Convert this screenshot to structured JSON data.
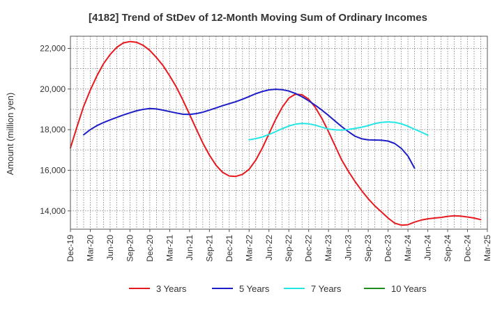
{
  "chart_data": {
    "type": "line",
    "title": "[4182]  Trend of StDev of 12-Month Moving Sum of Ordinary Incomes",
    "xlabel": "",
    "ylabel": "Amount (million yen)",
    "x_ticks": [
      "Dec-19",
      "Mar-20",
      "Jun-20",
      "Sep-20",
      "Dec-20",
      "Mar-21",
      "Jun-21",
      "Sep-21",
      "Dec-21",
      "Mar-22",
      "Jun-22",
      "Sep-22",
      "Dec-22",
      "Mar-23",
      "Jun-23",
      "Sep-23",
      "Dec-23",
      "Mar-24",
      "Jun-24",
      "Sep-24",
      "Dec-24",
      "Mar-25"
    ],
    "y_ticks": [
      "14,000",
      "16,000",
      "18,000",
      "20,000",
      "22,000"
    ],
    "ylim": [
      13100,
      22600
    ],
    "grid": true,
    "legend_position": "bottom",
    "series": [
      {
        "name": "3 Years",
        "color": "#e8191e",
        "points": [
          [
            0,
            17100
          ],
          [
            1,
            18150
          ],
          [
            2,
            19150
          ],
          [
            3,
            19950
          ],
          [
            4,
            20650
          ],
          [
            5,
            21250
          ],
          [
            6,
            21700
          ],
          [
            7,
            22050
          ],
          [
            8,
            22270
          ],
          [
            9,
            22340
          ],
          [
            10,
            22300
          ],
          [
            11,
            22150
          ],
          [
            12,
            21900
          ],
          [
            13,
            21550
          ],
          [
            14,
            21150
          ],
          [
            15,
            20650
          ],
          [
            16,
            20100
          ],
          [
            17,
            19450
          ],
          [
            18,
            18750
          ],
          [
            19,
            18050
          ],
          [
            20,
            17350
          ],
          [
            21,
            16750
          ],
          [
            22,
            16250
          ],
          [
            23,
            15900
          ],
          [
            24,
            15720
          ],
          [
            25,
            15700
          ],
          [
            26,
            15800
          ],
          [
            27,
            16050
          ],
          [
            28,
            16500
          ],
          [
            29,
            17100
          ],
          [
            30,
            17800
          ],
          [
            31,
            18500
          ],
          [
            32,
            19100
          ],
          [
            33,
            19550
          ],
          [
            34,
            19750
          ],
          [
            35,
            19720
          ],
          [
            36,
            19500
          ],
          [
            37,
            19100
          ],
          [
            38,
            18550
          ],
          [
            39,
            17900
          ],
          [
            40,
            17200
          ],
          [
            41,
            16500
          ],
          [
            42,
            15950
          ],
          [
            43,
            15450
          ],
          [
            44,
            15000
          ],
          [
            45,
            14600
          ],
          [
            46,
            14250
          ],
          [
            47,
            13950
          ],
          [
            48,
            13650
          ],
          [
            49,
            13400
          ],
          [
            50,
            13300
          ],
          [
            51,
            13320
          ],
          [
            52,
            13450
          ],
          [
            53,
            13550
          ],
          [
            54,
            13610
          ],
          [
            55,
            13650
          ],
          [
            56,
            13680
          ],
          [
            57,
            13730
          ],
          [
            58,
            13760
          ],
          [
            59,
            13740
          ],
          [
            60,
            13700
          ],
          [
            61,
            13650
          ],
          [
            62,
            13570
          ]
        ]
      },
      {
        "name": "5 Years",
        "color": "#1d1dc8",
        "points": [
          [
            2,
            17750
          ],
          [
            3,
            18000
          ],
          [
            4,
            18200
          ],
          [
            5,
            18350
          ],
          [
            6,
            18480
          ],
          [
            7,
            18600
          ],
          [
            8,
            18720
          ],
          [
            9,
            18830
          ],
          [
            10,
            18930
          ],
          [
            11,
            19000
          ],
          [
            12,
            19040
          ],
          [
            13,
            19020
          ],
          [
            14,
            18960
          ],
          [
            15,
            18890
          ],
          [
            16,
            18820
          ],
          [
            17,
            18760
          ],
          [
            18,
            18750
          ],
          [
            19,
            18790
          ],
          [
            20,
            18860
          ],
          [
            21,
            18960
          ],
          [
            22,
            19070
          ],
          [
            23,
            19180
          ],
          [
            24,
            19280
          ],
          [
            25,
            19380
          ],
          [
            26,
            19500
          ],
          [
            27,
            19630
          ],
          [
            28,
            19770
          ],
          [
            29,
            19880
          ],
          [
            30,
            19960
          ],
          [
            31,
            19990
          ],
          [
            32,
            19970
          ],
          [
            33,
            19900
          ],
          [
            34,
            19780
          ],
          [
            35,
            19620
          ],
          [
            36,
            19420
          ],
          [
            37,
            19200
          ],
          [
            38,
            18960
          ],
          [
            39,
            18700
          ],
          [
            40,
            18420
          ],
          [
            41,
            18150
          ],
          [
            42,
            17900
          ],
          [
            43,
            17680
          ],
          [
            44,
            17550
          ],
          [
            45,
            17500
          ],
          [
            46,
            17490
          ],
          [
            47,
            17480
          ],
          [
            48,
            17440
          ],
          [
            49,
            17320
          ],
          [
            50,
            17080
          ],
          [
            51,
            16700
          ],
          [
            52,
            16100
          ]
        ]
      },
      {
        "name": "7 Years",
        "color": "#22e6e6",
        "points": [
          [
            27,
            17500
          ],
          [
            28,
            17560
          ],
          [
            29,
            17640
          ],
          [
            30,
            17760
          ],
          [
            31,
            17900
          ],
          [
            32,
            18050
          ],
          [
            33,
            18180
          ],
          [
            34,
            18270
          ],
          [
            35,
            18310
          ],
          [
            36,
            18290
          ],
          [
            37,
            18220
          ],
          [
            38,
            18120
          ],
          [
            39,
            18030
          ],
          [
            40,
            17990
          ],
          [
            41,
            17980
          ],
          [
            42,
            18010
          ],
          [
            43,
            18060
          ],
          [
            44,
            18120
          ],
          [
            45,
            18200
          ],
          [
            46,
            18300
          ],
          [
            47,
            18360
          ],
          [
            48,
            18380
          ],
          [
            49,
            18360
          ],
          [
            50,
            18290
          ],
          [
            51,
            18170
          ],
          [
            52,
            18020
          ],
          [
            53,
            17880
          ],
          [
            54,
            17730
          ]
        ]
      },
      {
        "name": "10 Years",
        "color": "#1f8c1f",
        "points": []
      }
    ]
  }
}
